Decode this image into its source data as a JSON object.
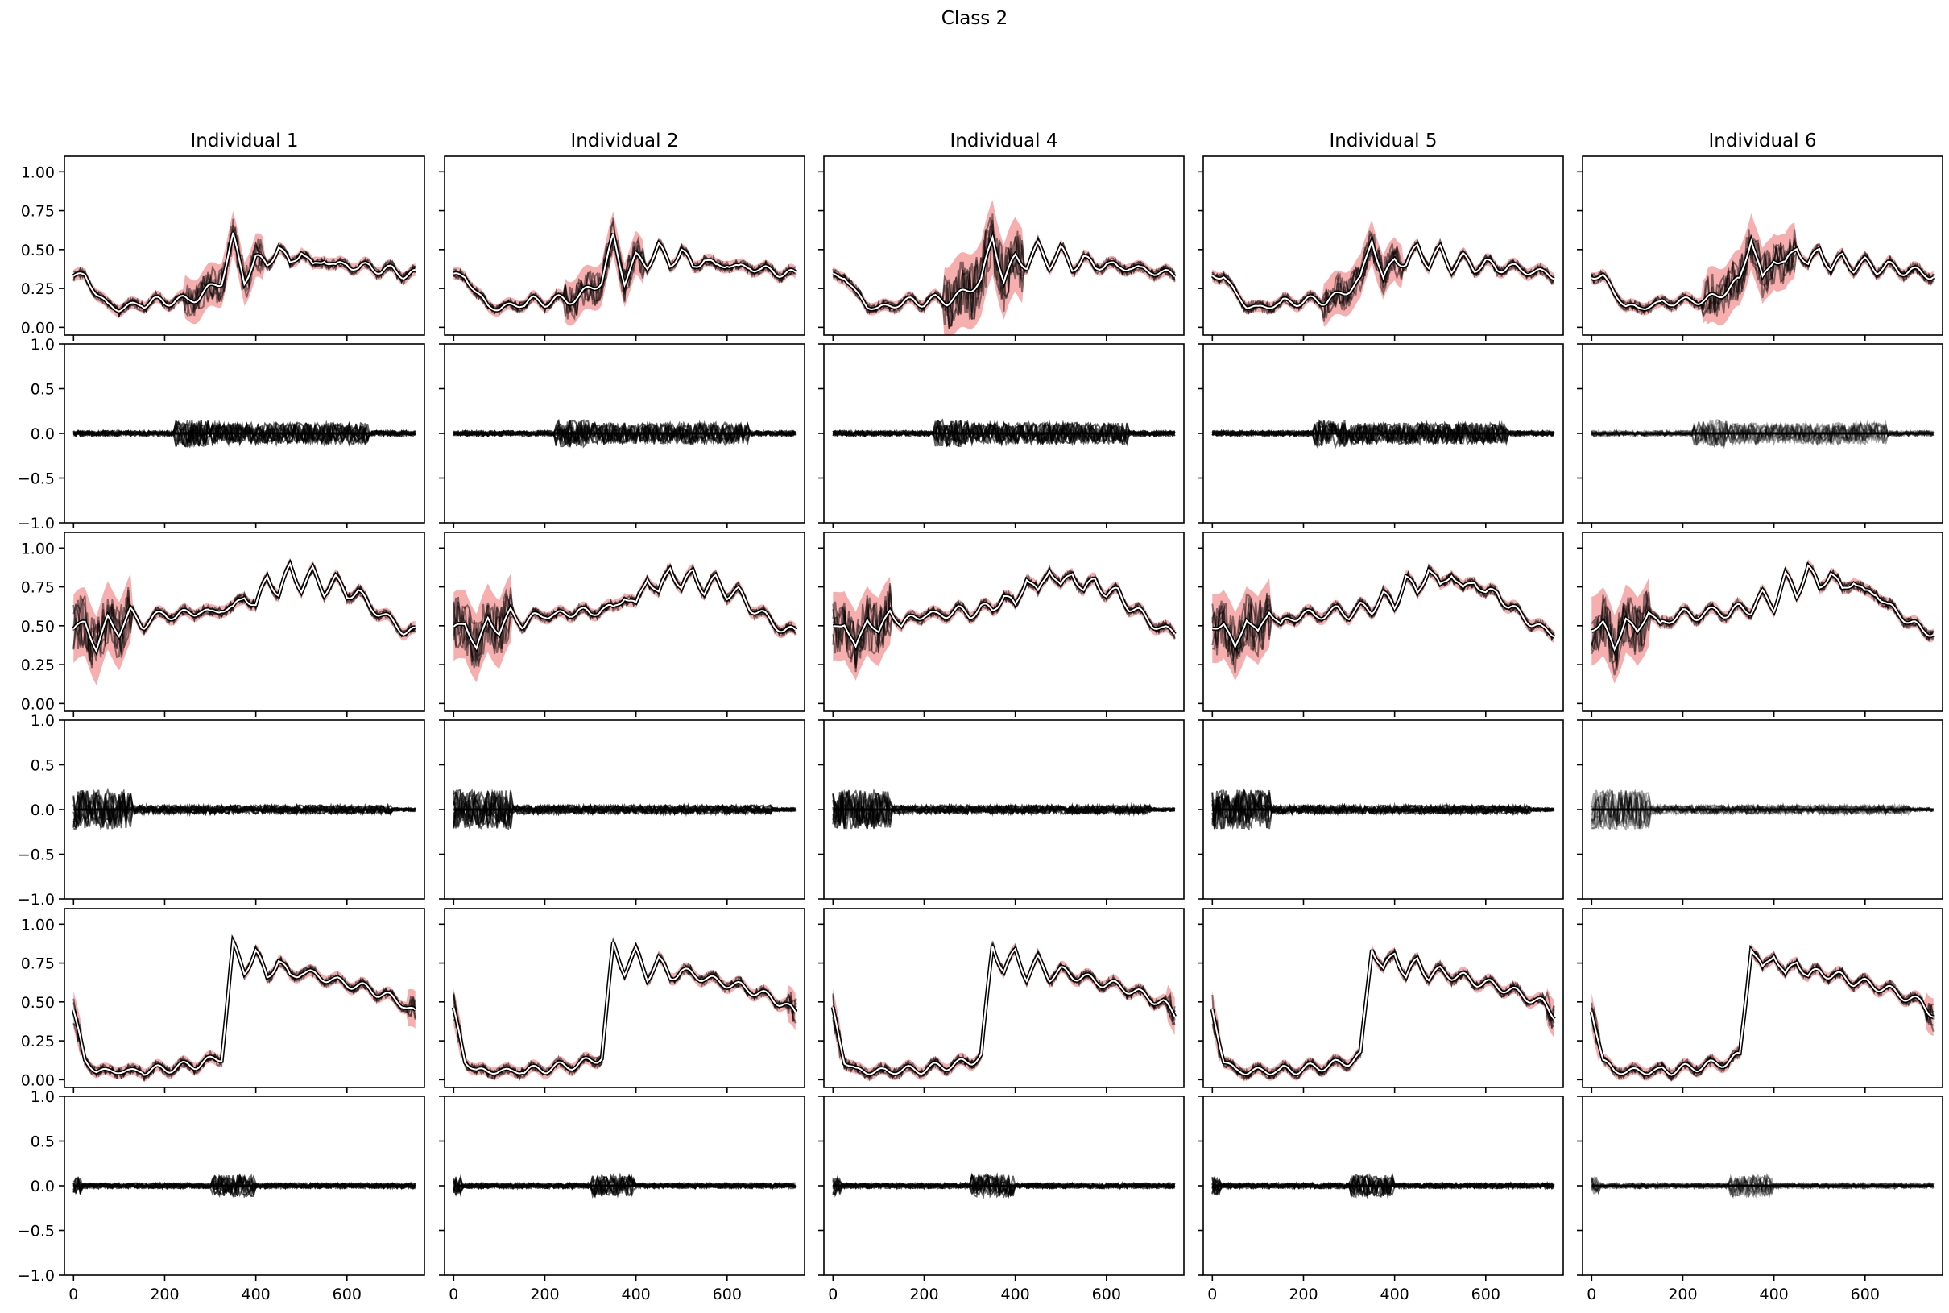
{
  "figure_title": "Class 2",
  "chart_data": {
    "type": "line",
    "title": "Class 2",
    "columns": [
      "Individual 1",
      "Individual 2",
      "Individual 4",
      "Individual 5",
      "Individual 6"
    ],
    "x_range": [
      0,
      750
    ],
    "x_ticks": [
      0,
      200,
      400,
      600
    ],
    "x_tick_labels": [
      "0",
      "200",
      "400",
      "600"
    ],
    "rows": [
      {
        "kind": "signal",
        "ylim": [
          -0.05,
          1.1
        ],
        "y_ticks": [
          0.0,
          0.25,
          0.5,
          0.75,
          1.0
        ],
        "y_tick_labels": [
          "0.00",
          "0.25",
          "0.50",
          "0.75",
          "1.00"
        ]
      },
      {
        "kind": "residual",
        "ylim": [
          -1.0,
          1.0
        ],
        "y_ticks": [
          -1.0,
          -0.5,
          0.0,
          0.5,
          1.0
        ],
        "y_tick_labels": [
          "−1.0",
          "−0.5",
          "0.0",
          "0.5",
          "1.0"
        ]
      },
      {
        "kind": "signal",
        "ylim": [
          -0.05,
          1.1
        ],
        "y_ticks": [
          0.0,
          0.25,
          0.5,
          0.75,
          1.0
        ],
        "y_tick_labels": [
          "0.00",
          "0.25",
          "0.50",
          "0.75",
          "1.00"
        ]
      },
      {
        "kind": "residual",
        "ylim": [
          -1.0,
          1.0
        ],
        "y_ticks": [
          -1.0,
          -0.5,
          0.0,
          0.5,
          1.0
        ],
        "y_tick_labels": [
          "−1.0",
          "−0.5",
          "0.0",
          "0.5",
          "1.0"
        ]
      },
      {
        "kind": "signal",
        "ylim": [
          -0.05,
          1.1
        ],
        "y_ticks": [
          0.0,
          0.25,
          0.5,
          0.75,
          1.0
        ],
        "y_tick_labels": [
          "0.00",
          "0.25",
          "0.50",
          "0.75",
          "1.00"
        ]
      },
      {
        "kind": "residual",
        "ylim": [
          -1.0,
          1.0
        ],
        "y_ticks": [
          -1.0,
          -0.5,
          0.0,
          0.5,
          1.0
        ],
        "y_tick_labels": [
          "−1.0",
          "−0.5",
          "0.0",
          "0.5",
          "1.0"
        ]
      }
    ],
    "mean_curves_x": [
      0,
      25,
      50,
      75,
      100,
      125,
      150,
      175,
      200,
      225,
      250,
      275,
      300,
      325,
      350,
      375,
      400,
      425,
      450,
      475,
      500,
      525,
      550,
      575,
      600,
      625,
      650,
      675,
      700,
      725,
      750
    ],
    "mean_curves_y": {
      "row1": [
        0.33,
        0.33,
        0.22,
        0.14,
        0.12,
        0.14,
        0.15,
        0.17,
        0.16,
        0.18,
        0.17,
        0.2,
        0.25,
        0.3,
        0.58,
        0.3,
        0.45,
        0.4,
        0.52,
        0.4,
        0.5,
        0.38,
        0.45,
        0.38,
        0.42,
        0.37,
        0.4,
        0.36,
        0.37,
        0.34,
        0.34
      ],
      "row3": [
        0.48,
        0.52,
        0.35,
        0.55,
        0.45,
        0.6,
        0.5,
        0.55,
        0.58,
        0.56,
        0.58,
        0.6,
        0.57,
        0.62,
        0.6,
        0.7,
        0.62,
        0.82,
        0.7,
        0.88,
        0.74,
        0.85,
        0.72,
        0.8,
        0.7,
        0.72,
        0.62,
        0.58,
        0.52,
        0.47,
        0.46
      ],
      "row5": [
        0.45,
        0.12,
        0.06,
        0.05,
        0.06,
        0.05,
        0.06,
        0.06,
        0.07,
        0.08,
        0.09,
        0.1,
        0.12,
        0.15,
        0.86,
        0.7,
        0.82,
        0.66,
        0.77,
        0.66,
        0.7,
        0.67,
        0.66,
        0.63,
        0.62,
        0.6,
        0.58,
        0.55,
        0.52,
        0.49,
        0.42
      ]
    }
  },
  "colors": {
    "band": "#f4a0a0",
    "mean": "#ffffff",
    "traces": "#000000",
    "axes": "#000000"
  }
}
